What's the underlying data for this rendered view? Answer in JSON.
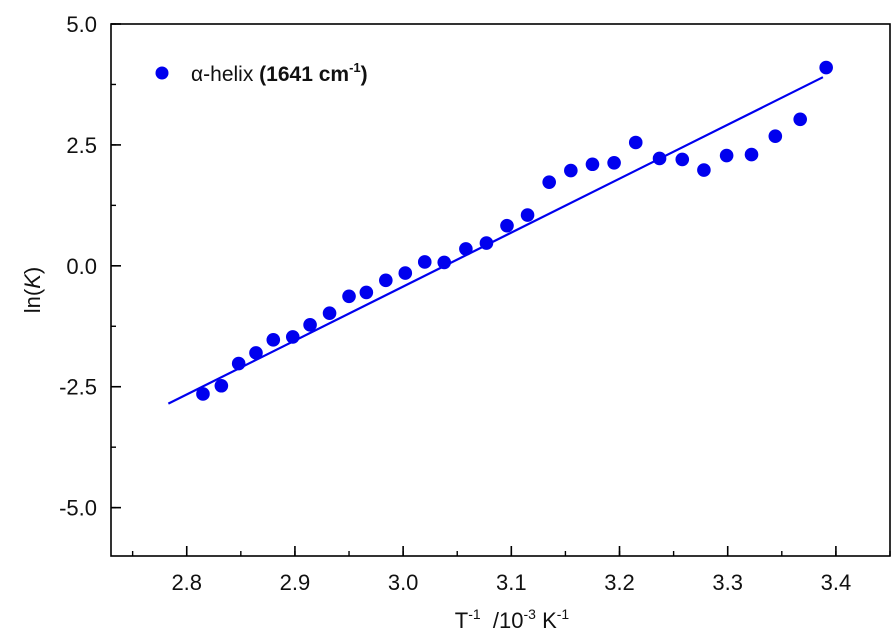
{
  "chart_data": {
    "type": "scatter",
    "xlabel": {
      "base": "T",
      "base_sup": "-1",
      "mid": "  /10",
      "mid_sup": "-3",
      "unit": " K",
      "unit_sup": "-1"
    },
    "ylabel": {
      "pre": "ln(",
      "italic": "K",
      "post": ")"
    },
    "xlim": [
      2.73,
      3.45
    ],
    "ylim": [
      -6.0,
      5.0
    ],
    "xticks": [
      2.8,
      2.9,
      3.0,
      3.1,
      3.2,
      3.3,
      3.4
    ],
    "xtick_labels": [
      "2.8",
      "2.9",
      "3.0",
      "3.1",
      "3.2",
      "3.3",
      "3.4"
    ],
    "yticks": [
      5.0,
      2.5,
      0.0,
      -2.5,
      -5.0
    ],
    "ytick_labels": [
      "5.0",
      "2.5",
      "0.0",
      "-2.5",
      "-5.0"
    ],
    "minor_y_step": 1.25,
    "minor_x_step": 0.05,
    "grid": false,
    "legend_position": "top-left",
    "series": [
      {
        "name": "α-helix (1641 cm",
        "name_bold": "(1641 cm",
        "name_prefix": "α-helix ",
        "name_sup": "-1",
        "name_suffix": ")",
        "color": "#0000ee",
        "points": [
          [
            2.815,
            -2.65
          ],
          [
            2.832,
            -2.48
          ],
          [
            2.848,
            -2.02
          ],
          [
            2.864,
            -1.8
          ],
          [
            2.88,
            -1.53
          ],
          [
            2.898,
            -1.47
          ],
          [
            2.914,
            -1.22
          ],
          [
            2.932,
            -0.98
          ],
          [
            2.95,
            -0.63
          ],
          [
            2.966,
            -0.55
          ],
          [
            2.984,
            -0.3
          ],
          [
            3.002,
            -0.15
          ],
          [
            3.02,
            0.08
          ],
          [
            3.038,
            0.07
          ],
          [
            3.058,
            0.35
          ],
          [
            3.077,
            0.47
          ],
          [
            3.096,
            0.83
          ],
          [
            3.115,
            1.05
          ],
          [
            3.135,
            1.73
          ],
          [
            3.155,
            1.97
          ],
          [
            3.175,
            2.1
          ],
          [
            3.195,
            2.13
          ],
          [
            3.215,
            2.55
          ],
          [
            3.237,
            2.22
          ],
          [
            3.258,
            2.2
          ],
          [
            3.278,
            1.98
          ],
          [
            3.299,
            2.28
          ],
          [
            3.322,
            2.3
          ],
          [
            3.344,
            2.68
          ],
          [
            3.367,
            3.03
          ],
          [
            3.391,
            4.1
          ]
        ]
      }
    ],
    "fit_line": {
      "color": "#0000ee",
      "x": [
        2.783,
        3.388
      ],
      "y": [
        -2.85,
        3.9
      ]
    }
  }
}
